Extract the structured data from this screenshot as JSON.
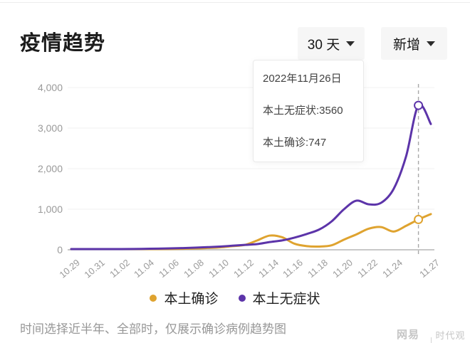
{
  "header": {
    "title": "疫情趋势",
    "range_button": {
      "label": "30 天"
    },
    "metric_button": {
      "label": "新增"
    }
  },
  "tooltip": {
    "date": "2022年11月26日",
    "line_asymptomatic": "本土无症状:3560",
    "line_confirmed": "本土确诊:747"
  },
  "caption": "时间选择近半年、全部时，仅展示确诊病例趋势图",
  "watermark": {
    "brand": "网易号",
    "author": "时代观者"
  },
  "chart_data": {
    "type": "line",
    "title": "疫情趋势",
    "x": [
      "10.29",
      "10.30",
      "10.31",
      "11.01",
      "11.02",
      "11.03",
      "11.04",
      "11.05",
      "11.06",
      "11.07",
      "11.08",
      "11.09",
      "11.10",
      "11.11",
      "11.12",
      "11.13",
      "11.14",
      "11.15",
      "11.16",
      "11.17",
      "11.18",
      "11.19",
      "11.20",
      "11.21",
      "11.22",
      "11.23",
      "11.24",
      "11.25",
      "11.26",
      "11.27"
    ],
    "series": [
      {
        "id": "confirmed",
        "name": "本土确诊",
        "color": "#dfa32f",
        "values": [
          4,
          5,
          6,
          8,
          10,
          12,
          14,
          16,
          20,
          25,
          32,
          45,
          60,
          90,
          120,
          230,
          350,
          310,
          150,
          90,
          80,
          110,
          250,
          380,
          520,
          560,
          450,
          590,
          747,
          880
        ]
      },
      {
        "id": "asymptomatic",
        "name": "本土无症状",
        "color": "#5c34a9",
        "values": [
          8,
          10,
          12,
          14,
          17,
          20,
          24,
          28,
          34,
          42,
          52,
          65,
          80,
          100,
          120,
          140,
          190,
          230,
          300,
          390,
          500,
          700,
          1000,
          1210,
          1120,
          1160,
          1500,
          2300,
          3560,
          3100
        ]
      }
    ],
    "highlight_index": 28,
    "highlight": {
      "date": "2022年11月26日",
      "asymptomatic": 3560,
      "confirmed": 747
    },
    "x_tick_indices": [
      0,
      2,
      4,
      6,
      8,
      10,
      12,
      14,
      16,
      18,
      20,
      22,
      24,
      26,
      29
    ],
    "y_ticks": [
      0,
      1000,
      2000,
      3000,
      4000
    ],
    "y_tick_labels": [
      "0",
      "1,000",
      "2,000",
      "3,000",
      "4,000"
    ],
    "ylim": [
      0,
      4000
    ],
    "grid": true,
    "legend_position": "bottom"
  }
}
